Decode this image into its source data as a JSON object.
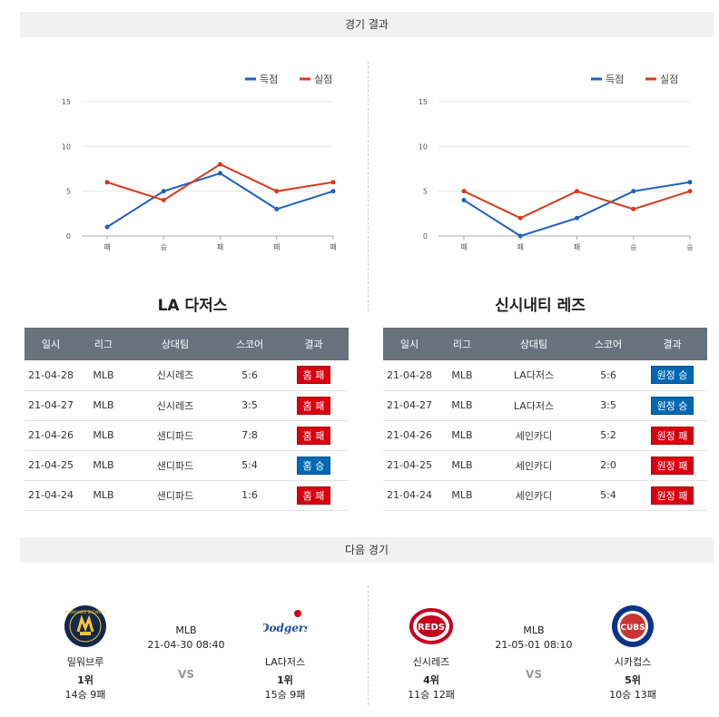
{
  "sections": {
    "results_title": "경기 결과",
    "next_title": "다음 경기"
  },
  "colors": {
    "score": "#1f5fbf",
    "lost": "#d73a1e",
    "header": "#68727d",
    "win": "#0068b3",
    "lose": "#d9000f"
  },
  "legend": {
    "score": "득점",
    "lost": "실점"
  },
  "charts": [
    {
      "type": "line",
      "team": "LA 다저스",
      "categories": [
        "패",
        "승",
        "패",
        "패",
        "패"
      ],
      "yticks": [
        "15",
        "10",
        "5",
        "0"
      ],
      "ylim": [
        0,
        15
      ],
      "series": [
        {
          "name": "득점",
          "values": [
            1,
            5,
            7,
            3,
            5
          ]
        },
        {
          "name": "실점",
          "values": [
            6,
            4,
            8,
            5,
            6
          ]
        }
      ]
    },
    {
      "type": "line",
      "team": "신시내티 레즈",
      "categories": [
        "패",
        "패",
        "패",
        "승",
        "승"
      ],
      "yticks": [
        "15",
        "10",
        "5",
        "0"
      ],
      "ylim": [
        0,
        15
      ],
      "series": [
        {
          "name": "득점",
          "values": [
            4,
            0,
            2,
            5,
            6
          ]
        },
        {
          "name": "실점",
          "values": [
            5,
            2,
            5,
            3,
            5
          ]
        }
      ]
    }
  ],
  "chart_data": [
    {
      "type": "line",
      "title": "LA 다저스",
      "categories": [
        "패",
        "승",
        "패",
        "패",
        "패"
      ],
      "series": [
        {
          "name": "득점",
          "values": [
            1,
            5,
            7,
            3,
            5
          ]
        },
        {
          "name": "실점",
          "values": [
            6,
            4,
            8,
            5,
            6
          ]
        }
      ],
      "ylim": [
        0,
        15
      ]
    },
    {
      "type": "line",
      "title": "신시내티 레즈",
      "categories": [
        "패",
        "패",
        "패",
        "승",
        "승"
      ],
      "series": [
        {
          "name": "득점",
          "values": [
            4,
            0,
            2,
            5,
            6
          ]
        },
        {
          "name": "실점",
          "values": [
            5,
            2,
            5,
            3,
            5
          ]
        }
      ],
      "ylim": [
        0,
        15
      ]
    }
  ],
  "table_headers": [
    "일시",
    "리그",
    "상대팀",
    "스코어",
    "결과"
  ],
  "tables": [
    {
      "rows": [
        {
          "date": "21-04-28",
          "league": "MLB",
          "opponent": "신시레즈",
          "score": "5:6",
          "result": "홈 패",
          "win": false
        },
        {
          "date": "21-04-27",
          "league": "MLB",
          "opponent": "신시레즈",
          "score": "3:5",
          "result": "홈 패",
          "win": false
        },
        {
          "date": "21-04-26",
          "league": "MLB",
          "opponent": "샌디파드",
          "score": "7:8",
          "result": "홈 패",
          "win": false
        },
        {
          "date": "21-04-25",
          "league": "MLB",
          "opponent": "샌디파드",
          "score": "5:4",
          "result": "홈 승",
          "win": true
        },
        {
          "date": "21-04-24",
          "league": "MLB",
          "opponent": "샌디파드",
          "score": "1:6",
          "result": "홈 패",
          "win": false
        }
      ]
    },
    {
      "rows": [
        {
          "date": "21-04-28",
          "league": "MLB",
          "opponent": "LA다저스",
          "score": "5:6",
          "result": "원정 승",
          "win": true
        },
        {
          "date": "21-04-27",
          "league": "MLB",
          "opponent": "LA다저스",
          "score": "3:5",
          "result": "원정 승",
          "win": true
        },
        {
          "date": "21-04-26",
          "league": "MLB",
          "opponent": "세인카디",
          "score": "5:2",
          "result": "원정 패",
          "win": false
        },
        {
          "date": "21-04-25",
          "league": "MLB",
          "opponent": "세인카디",
          "score": "2:0",
          "result": "원정 패",
          "win": false
        },
        {
          "date": "21-04-24",
          "league": "MLB",
          "opponent": "세인카디",
          "score": "5:4",
          "result": "원정 패",
          "win": false
        }
      ]
    }
  ],
  "next_games": [
    {
      "league": "MLB",
      "datetime": "21-04-30 08:40",
      "vs": "VS",
      "home": {
        "name": "밀워브루",
        "rank": "1위",
        "record": "14승 9패",
        "logo_text": "MILWAUKEE BREWERS"
      },
      "away": {
        "name": "LA다저스",
        "rank": "1위",
        "record": "15승 9패",
        "logo_text": "Dodgers"
      }
    },
    {
      "league": "MLB",
      "datetime": "21-05-01 08:10",
      "vs": "VS",
      "home": {
        "name": "신시레즈",
        "rank": "4위",
        "record": "11승 12패",
        "logo_text": "REDS"
      },
      "away": {
        "name": "시카컵스",
        "rank": "5위",
        "record": "10승 13패",
        "logo_text": "CUBS"
      }
    }
  ]
}
